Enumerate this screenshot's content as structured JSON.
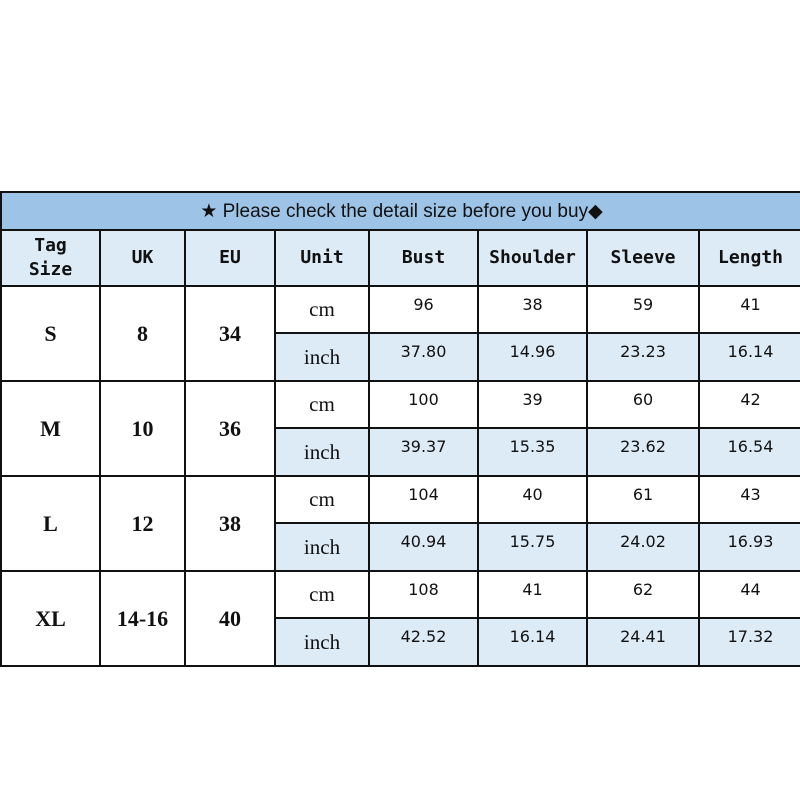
{
  "title": "★  Please check the detail size before you buy◆",
  "headers": [
    "Tag Size",
    "UK",
    "EU",
    "Unit",
    "Bust",
    "Shoulder",
    "Sleeve",
    "Length"
  ],
  "rows": [
    {
      "tag": "S",
      "uk": "8",
      "eu": "34",
      "cm": [
        "96",
        "38",
        "59",
        "41"
      ],
      "inch": [
        "37.80",
        "14.96",
        "23.23",
        "16.14"
      ]
    },
    {
      "tag": "M",
      "uk": "10",
      "eu": "36",
      "cm": [
        "100",
        "39",
        "60",
        "42"
      ],
      "inch": [
        "39.37",
        "15.35",
        "23.62",
        "16.54"
      ]
    },
    {
      "tag": "L",
      "uk": "12",
      "eu": "38",
      "cm": [
        "104",
        "40",
        "61",
        "43"
      ],
      "inch": [
        "40.94",
        "15.75",
        "24.02",
        "16.93"
      ]
    },
    {
      "tag": "XL",
      "uk": "14-16",
      "eu": "40",
      "cm": [
        "108",
        "41",
        "62",
        "44"
      ],
      "inch": [
        "42.52",
        "16.14",
        "24.41",
        "17.32"
      ]
    }
  ],
  "units": {
    "cm": "cm",
    "inch": "inch"
  },
  "colors": {
    "title_bg": "#9dc3e6",
    "header_bg": "#ddebf7"
  }
}
